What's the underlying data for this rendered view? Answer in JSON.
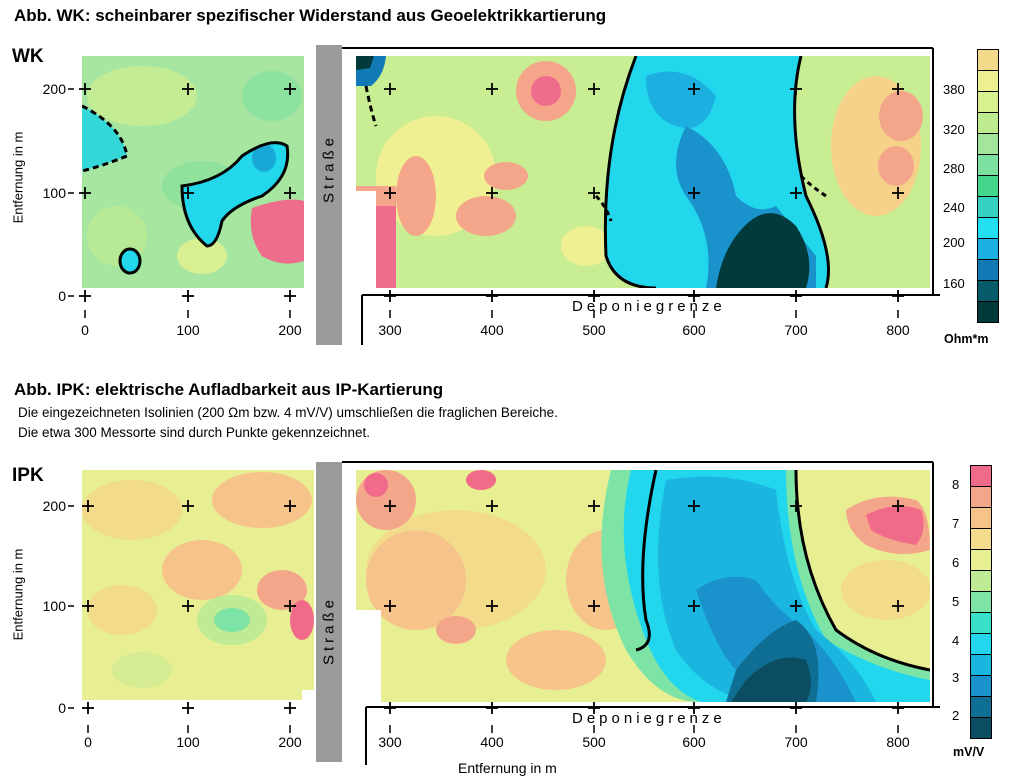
{
  "wk": {
    "figure_title": "Abb. WK: scheinbarer spezifischer Widerstand aus Geoelektrikkartierung",
    "panel_tag": "WK",
    "ylabel": "Entfernung in m",
    "road_label": "Straße",
    "boundary_label": "Deponiegrenze",
    "colorbar_unit": "Ohm*m",
    "colorbar_ticks": [
      "380",
      "320",
      "280",
      "240",
      "200",
      "160"
    ],
    "colorbar_colors": [
      "#f3d98a",
      "#eef08f",
      "#d9f08f",
      "#bfeb8f",
      "#a3e69b",
      "#7be0a0",
      "#44d68a",
      "#35d0c0",
      "#22dff2",
      "#1cb0e0",
      "#1179b5",
      "#075a6a",
      "#003a3a"
    ]
  },
  "ipk": {
    "figure_title": "Abb. IPK: elektrische Aufladbarkeit aus IP-Kartierung",
    "note_line1": "Die eingezeichneten Isolinien (200 Ωm bzw. 4 mV/V) umschließen die fraglichen Bereiche.",
    "note_line2": "Die etwa 300 Messorte sind durch Punkte gekennzeichnet.",
    "panel_tag": "IPK",
    "ylabel": "Entfernung in m",
    "road_label": "Straße",
    "boundary_label": "Deponiegrenze",
    "xlabel": "Entfernung in m",
    "colorbar_unit": "mV/V",
    "colorbar_ticks": [
      "8",
      "7",
      "6",
      "5",
      "4",
      "3",
      "2"
    ],
    "colorbar_colors": [
      "#f06b8a",
      "#f4a68a",
      "#f6c48a",
      "#f2dc8c",
      "#e8ee92",
      "#bfeb95",
      "#7ee4a6",
      "#39dfc8",
      "#22d6ee",
      "#1bb6e0",
      "#1a93cc",
      "#0f6e94",
      "#0b4e62"
    ]
  },
  "chart_data": [
    {
      "type": "heatmap",
      "title": "Abb. WK: scheinbarer spezifischer Widerstand aus Geoelektrikkartierung",
      "ylabel": "Entfernung in m",
      "x_ticks": [
        "0",
        "100",
        "200",
        "300",
        "400",
        "500",
        "600",
        "700",
        "800"
      ],
      "y_ticks": [
        "0",
        "100",
        "200"
      ],
      "xlim": [
        -5,
        835
      ],
      "ylim": [
        -10,
        235
      ],
      "colorbar": {
        "unit": "Ohm*m",
        "ticks": [
          380,
          320,
          280,
          240,
          200,
          160
        ]
      },
      "isoline": 200,
      "annotations": [
        "Straße",
        "Deponiegrenze"
      ]
    },
    {
      "type": "heatmap",
      "title": "Abb. IPK: elektrische Aufladbarkeit aus IP-Kartierung",
      "xlabel": "Entfernung in m",
      "ylabel": "Entfernung in m",
      "x_ticks": [
        "0",
        "100",
        "200",
        "300",
        "400",
        "500",
        "600",
        "700",
        "800"
      ],
      "y_ticks": [
        "0",
        "100",
        "200"
      ],
      "xlim": [
        -5,
        835
      ],
      "ylim": [
        -10,
        235
      ],
      "colorbar": {
        "unit": "mV/V",
        "ticks": [
          8,
          7,
          6,
          5,
          4,
          3,
          2
        ]
      },
      "isoline": 4,
      "annotations": [
        "Straße",
        "Deponiegrenze"
      ]
    }
  ]
}
